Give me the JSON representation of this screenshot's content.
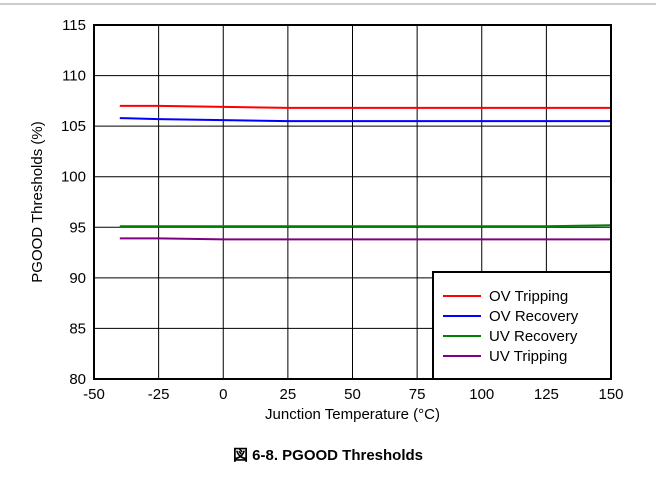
{
  "chart_data": {
    "type": "line",
    "title": "",
    "xlabel": "Junction Temperature (°C)",
    "ylabel": "PGOOD Thresholds (%)",
    "xlim": [
      -50,
      150
    ],
    "ylim": [
      80,
      115
    ],
    "xticks": [
      -50,
      -25,
      0,
      25,
      50,
      75,
      100,
      125,
      150
    ],
    "yticks": [
      80,
      85,
      90,
      95,
      100,
      105,
      110,
      115
    ],
    "grid": true,
    "legend_position": "bottom-right",
    "series": [
      {
        "name": "OV Tripping",
        "color": "#ff0000",
        "x": [
          -40,
          -25,
          0,
          25,
          50,
          75,
          100,
          125,
          150
        ],
        "y": [
          107.0,
          107.0,
          106.9,
          106.8,
          106.8,
          106.8,
          106.8,
          106.8,
          106.8
        ]
      },
      {
        "name": "OV Recovery",
        "color": "#0000ff",
        "x": [
          -40,
          -25,
          0,
          25,
          50,
          75,
          100,
          125,
          150
        ],
        "y": [
          105.8,
          105.7,
          105.6,
          105.5,
          105.5,
          105.5,
          105.5,
          105.5,
          105.5
        ]
      },
      {
        "name": "UV Recovery",
        "color": "#008000",
        "x": [
          -40,
          -25,
          0,
          25,
          50,
          75,
          100,
          125,
          150
        ],
        "y": [
          95.1,
          95.1,
          95.1,
          95.1,
          95.1,
          95.1,
          95.1,
          95.1,
          95.2
        ]
      },
      {
        "name": "UV Tripping",
        "color": "#800080",
        "x": [
          -40,
          -25,
          0,
          25,
          50,
          75,
          100,
          125,
          150
        ],
        "y": [
          93.9,
          93.9,
          93.8,
          93.8,
          93.8,
          93.8,
          93.8,
          93.8,
          93.8
        ]
      }
    ]
  },
  "caption": "図 6-8. PGOOD Thresholds"
}
